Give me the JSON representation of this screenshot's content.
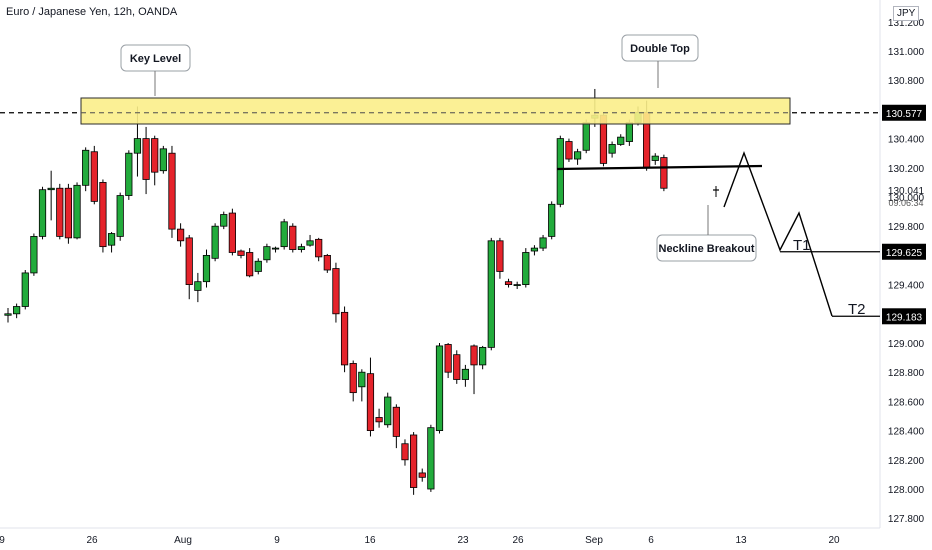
{
  "header": {
    "title": "Euro / Japanese Yen, 12h, OANDA",
    "currency": "JPY"
  },
  "chart_data": {
    "type": "candlestick",
    "ylim": [
      127.8,
      131.2
    ],
    "y_ticks": [
      "131.200",
      "131.000",
      "130.800",
      "130.600",
      "130.400",
      "130.200",
      "130.000",
      "129.800",
      "129.600",
      "129.400",
      "129.200",
      "129.000",
      "128.800",
      "128.600",
      "128.400",
      "128.200",
      "128.000",
      "127.800"
    ],
    "x_tick_labels": [
      "9",
      "26",
      "Aug",
      "9",
      "16",
      "23",
      "26",
      "Sep",
      "6",
      "13",
      "20"
    ],
    "price_labels": {
      "key_level": "130.577",
      "last_price": "130.041",
      "countdown": "09:06:34",
      "t1": "129.625",
      "t2": "129.183"
    },
    "annotations": {
      "key_level": "Key Level",
      "double_top": "Double Top",
      "neckline_breakout": "Neckline Breakout",
      "t1": "T1",
      "t2": "T2"
    },
    "colors": {
      "up": "#22ab3c",
      "down": "#e5232b",
      "zone_fill": "#fbee8a",
      "zone_stroke": "#2b2b2b",
      "line": "#131722"
    },
    "candles": [
      [
        129.19,
        129.2,
        129.14,
        129.24
      ],
      [
        129.2,
        129.25,
        129.17,
        129.27
      ],
      [
        129.25,
        129.48,
        129.23,
        129.5
      ],
      [
        129.48,
        129.73,
        129.46,
        129.75
      ],
      [
        129.73,
        130.05,
        129.71,
        130.07
      ],
      [
        130.05,
        130.06,
        129.84,
        130.18
      ],
      [
        130.06,
        129.73,
        129.71,
        130.09
      ],
      [
        130.06,
        129.72,
        129.68,
        130.09
      ],
      [
        129.72,
        130.08,
        129.71,
        130.1
      ],
      [
        130.08,
        130.32,
        130.04,
        130.34
      ],
      [
        130.31,
        129.97,
        129.95,
        130.35
      ],
      [
        130.1,
        129.66,
        129.62,
        130.12
      ],
      [
        129.67,
        129.75,
        129.62,
        129.76
      ],
      [
        129.73,
        130.01,
        129.7,
        130.03
      ],
      [
        130.01,
        130.3,
        129.98,
        130.32
      ],
      [
        130.3,
        130.4,
        130.14,
        130.62
      ],
      [
        130.4,
        130.12,
        130.02,
        130.48
      ],
      [
        130.4,
        130.17,
        130.08,
        130.42
      ],
      [
        130.18,
        130.33,
        130.16,
        130.35
      ],
      [
        130.3,
        129.78,
        129.72,
        130.35
      ],
      [
        129.78,
        129.7,
        129.66,
        129.82
      ],
      [
        129.72,
        129.4,
        129.3,
        129.74
      ],
      [
        129.36,
        129.42,
        129.28,
        129.48
      ],
      [
        129.42,
        129.6,
        129.38,
        129.64
      ],
      [
        129.58,
        129.8,
        129.56,
        129.82
      ],
      [
        129.8,
        129.88,
        129.78,
        129.9
      ],
      [
        129.89,
        129.62,
        129.6,
        129.92
      ],
      [
        129.63,
        129.6,
        129.58,
        129.64
      ],
      [
        129.62,
        129.46,
        129.45,
        129.65
      ],
      [
        129.49,
        129.56,
        129.47,
        129.58
      ],
      [
        129.57,
        129.66,
        129.55,
        129.68
      ],
      [
        129.65,
        129.65,
        129.62,
        129.66
      ],
      [
        129.66,
        129.83,
        129.64,
        129.85
      ],
      [
        129.8,
        129.64,
        129.62,
        129.82
      ],
      [
        129.64,
        129.66,
        129.62,
        129.68
      ],
      [
        129.67,
        129.7,
        129.66,
        129.74
      ],
      [
        129.71,
        129.59,
        129.56,
        129.72
      ],
      [
        129.6,
        129.5,
        129.48,
        129.61
      ],
      [
        129.51,
        129.2,
        129.14,
        129.55
      ],
      [
        129.21,
        128.85,
        128.8,
        129.25
      ],
      [
        128.86,
        128.66,
        128.6,
        128.88
      ],
      [
        128.7,
        128.8,
        128.6,
        128.82
      ],
      [
        128.79,
        128.4,
        128.36,
        128.9
      ],
      [
        128.49,
        128.46,
        128.42,
        128.55
      ],
      [
        128.44,
        128.63,
        128.42,
        128.66
      ],
      [
        128.56,
        128.36,
        128.28,
        128.58
      ],
      [
        128.31,
        128.2,
        128.16,
        128.34
      ],
      [
        128.37,
        128.01,
        127.96,
        128.39
      ],
      [
        128.11,
        128.08,
        128.05,
        128.14
      ],
      [
        128.0,
        128.42,
        127.98,
        128.44
      ],
      [
        128.4,
        128.98,
        128.38,
        129.0
      ],
      [
        128.99,
        128.8,
        128.76,
        129.0
      ],
      [
        128.92,
        128.75,
        128.72,
        128.95
      ],
      [
        128.75,
        128.82,
        128.7,
        128.85
      ],
      [
        128.98,
        128.85,
        128.65,
        128.99
      ],
      [
        128.85,
        128.97,
        128.82,
        128.98
      ],
      [
        128.97,
        129.7,
        128.95,
        129.72
      ],
      [
        129.7,
        129.49,
        129.44,
        129.72
      ],
      [
        129.42,
        129.4,
        129.38,
        129.44
      ],
      [
        129.4,
        129.4,
        129.37,
        129.42
      ],
      [
        129.4,
        129.62,
        129.38,
        129.65
      ],
      [
        129.63,
        129.65,
        129.6,
        129.67
      ],
      [
        129.65,
        129.72,
        129.63,
        129.74
      ],
      [
        129.73,
        129.95,
        129.71,
        129.97
      ],
      [
        129.95,
        130.4,
        129.93,
        130.42
      ],
      [
        130.38,
        130.26,
        130.24,
        130.4
      ],
      [
        130.26,
        130.31,
        130.22,
        130.33
      ],
      [
        130.32,
        130.51,
        130.3,
        130.53
      ],
      [
        130.54,
        130.56,
        130.48,
        130.74
      ],
      [
        130.56,
        130.23,
        130.21,
        130.58
      ],
      [
        130.3,
        130.36,
        130.27,
        130.38
      ],
      [
        130.36,
        130.41,
        130.35,
        130.43
      ],
      [
        130.38,
        130.51,
        130.35,
        130.53
      ],
      [
        130.51,
        130.58,
        130.49,
        130.62
      ],
      [
        130.58,
        130.2,
        130.18,
        130.66
      ],
      [
        130.25,
        130.28,
        130.22,
        130.3
      ],
      [
        130.27,
        130.06,
        130.04,
        130.29
      ]
    ]
  }
}
